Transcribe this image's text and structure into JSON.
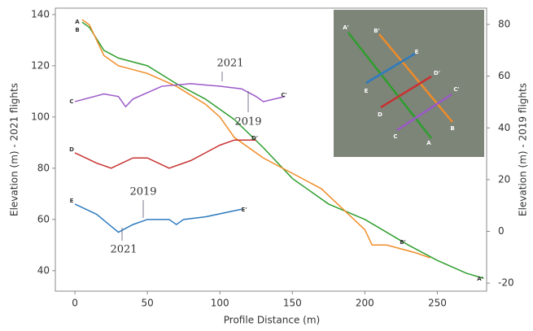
{
  "chart_data": {
    "type": "line",
    "x_label": "Profile Distance (m)",
    "y_label": "Elevation (m) - 2021 flights",
    "y2_label": "Elevation (m) - 2019 flights",
    "xlim": [
      -13.5,
      284
    ],
    "xticks": [
      0,
      50,
      100,
      150,
      200,
      250
    ],
    "ylim": [
      32,
      142.5
    ],
    "yticks": [
      40,
      60,
      80,
      100,
      120,
      140
    ],
    "y2lim": [
      -23.1,
      86.3
    ],
    "y2ticks": [
      -20,
      0,
      20,
      40,
      60,
      80
    ],
    "series": [
      {
        "color": "#2e9e2e",
        "x": [
          5,
          10,
          20,
          30,
          50,
          70,
          90,
          110,
          130,
          150,
          170,
          175,
          200,
          230,
          250,
          270,
          282
        ],
        "values": [
          137,
          135,
          126,
          123,
          120,
          113,
          107,
          99,
          88,
          76,
          68,
          66,
          60,
          50,
          44,
          39,
          37
        ]
      },
      {
        "color": "#f08c28",
        "x": [
          5,
          10,
          20,
          30,
          50,
          70,
          90,
          100,
          110,
          130,
          150,
          170,
          200,
          205,
          215,
          235,
          245
        ],
        "values": [
          138,
          136,
          124,
          120,
          117,
          112,
          105,
          100,
          92,
          84,
          78,
          72,
          56,
          50,
          50,
          47,
          45
        ]
      },
      {
        "color": "#9b59c8",
        "x": [
          0,
          20,
          30,
          35,
          40,
          60,
          80,
          100,
          115,
          125,
          130,
          145
        ],
        "values": [
          106,
          109,
          108,
          104,
          107,
          112,
          113,
          112,
          111,
          108,
          106,
          108
        ]
      },
      {
        "color": "#c83232",
        "x": [
          0,
          15,
          25,
          40,
          50,
          65,
          80,
          100,
          110,
          125
        ],
        "values": [
          86,
          82,
          80,
          84,
          84,
          80,
          83,
          89,
          91,
          91
        ]
      },
      {
        "color": "#2e7bbf",
        "x": [
          0,
          15,
          30,
          40,
          50,
          65,
          70,
          75,
          90,
          115
        ],
        "values": [
          66,
          62,
          55,
          58,
          60,
          60,
          58,
          60,
          61,
          64
        ]
      }
    ],
    "annotations": [
      "A",
      "B",
      "C",
      "C'",
      "D",
      "D'",
      "E",
      "E'",
      "A'",
      "B'",
      "2021",
      "2019",
      "2019",
      "2021"
    ],
    "inset_labels": [
      "A'",
      "B'",
      "E",
      "D'",
      "C'",
      "E",
      "D",
      "C",
      "A",
      "B"
    ]
  }
}
